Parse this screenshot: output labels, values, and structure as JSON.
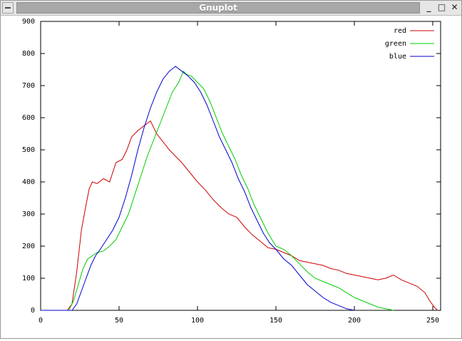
{
  "window": {
    "title": "Gnuplot",
    "controls": {
      "minimize": "_",
      "maximize": "□",
      "close": "✕"
    }
  },
  "chart_data": {
    "type": "line",
    "xlim": [
      0,
      255
    ],
    "ylim": [
      0,
      900
    ],
    "xticks": [
      0,
      50,
      100,
      150,
      200,
      250
    ],
    "yticks": [
      0,
      100,
      200,
      300,
      400,
      500,
      600,
      700,
      800,
      900
    ],
    "legend_position": "top-right",
    "grid": false,
    "series": [
      {
        "name": "red",
        "color": "#cc0000",
        "points": [
          [
            0,
            0
          ],
          [
            17,
            0
          ],
          [
            20,
            20
          ],
          [
            23,
            120
          ],
          [
            26,
            250
          ],
          [
            29,
            330
          ],
          [
            31,
            380
          ],
          [
            33,
            400
          ],
          [
            36,
            395
          ],
          [
            40,
            410
          ],
          [
            44,
            400
          ],
          [
            48,
            460
          ],
          [
            52,
            470
          ],
          [
            55,
            500
          ],
          [
            58,
            540
          ],
          [
            62,
            560
          ],
          [
            66,
            575
          ],
          [
            70,
            590
          ],
          [
            74,
            550
          ],
          [
            78,
            525
          ],
          [
            82,
            500
          ],
          [
            86,
            480
          ],
          [
            90,
            460
          ],
          [
            95,
            430
          ],
          [
            100,
            400
          ],
          [
            105,
            375
          ],
          [
            110,
            345
          ],
          [
            115,
            320
          ],
          [
            120,
            300
          ],
          [
            125,
            290
          ],
          [
            130,
            260
          ],
          [
            135,
            235
          ],
          [
            140,
            215
          ],
          [
            145,
            195
          ],
          [
            150,
            190
          ],
          [
            155,
            180
          ],
          [
            160,
            170
          ],
          [
            165,
            155
          ],
          [
            170,
            150
          ],
          [
            175,
            145
          ],
          [
            180,
            140
          ],
          [
            185,
            130
          ],
          [
            190,
            125
          ],
          [
            195,
            115
          ],
          [
            200,
            110
          ],
          [
            205,
            105
          ],
          [
            210,
            100
          ],
          [
            215,
            95
          ],
          [
            220,
            100
          ],
          [
            225,
            110
          ],
          [
            230,
            95
          ],
          [
            235,
            85
          ],
          [
            240,
            75
          ],
          [
            245,
            55
          ],
          [
            248,
            30
          ],
          [
            251,
            10
          ],
          [
            253,
            0
          ]
        ]
      },
      {
        "name": "green",
        "color": "#00cc00",
        "points": [
          [
            0,
            0
          ],
          [
            18,
            0
          ],
          [
            21,
            30
          ],
          [
            24,
            80
          ],
          [
            27,
            130
          ],
          [
            30,
            160
          ],
          [
            33,
            170
          ],
          [
            36,
            180
          ],
          [
            40,
            185
          ],
          [
            44,
            200
          ],
          [
            48,
            220
          ],
          [
            52,
            260
          ],
          [
            56,
            300
          ],
          [
            60,
            360
          ],
          [
            64,
            420
          ],
          [
            68,
            480
          ],
          [
            72,
            530
          ],
          [
            76,
            580
          ],
          [
            80,
            630
          ],
          [
            84,
            680
          ],
          [
            88,
            710
          ],
          [
            91,
            745
          ],
          [
            93,
            735
          ],
          [
            96,
            730
          ],
          [
            100,
            710
          ],
          [
            104,
            690
          ],
          [
            108,
            650
          ],
          [
            112,
            600
          ],
          [
            116,
            550
          ],
          [
            120,
            510
          ],
          [
            124,
            470
          ],
          [
            128,
            420
          ],
          [
            132,
            380
          ],
          [
            136,
            330
          ],
          [
            140,
            290
          ],
          [
            145,
            240
          ],
          [
            150,
            200
          ],
          [
            155,
            190
          ],
          [
            160,
            170
          ],
          [
            165,
            145
          ],
          [
            170,
            120
          ],
          [
            175,
            100
          ],
          [
            180,
            90
          ],
          [
            185,
            80
          ],
          [
            190,
            70
          ],
          [
            195,
            55
          ],
          [
            200,
            40
          ],
          [
            205,
            30
          ],
          [
            210,
            20
          ],
          [
            215,
            10
          ],
          [
            220,
            5
          ],
          [
            225,
            0
          ]
        ]
      },
      {
        "name": "blue",
        "color": "#0000cc",
        "points": [
          [
            0,
            0
          ],
          [
            20,
            0
          ],
          [
            23,
            20
          ],
          [
            26,
            60
          ],
          [
            29,
            100
          ],
          [
            32,
            140
          ],
          [
            35,
            170
          ],
          [
            38,
            190
          ],
          [
            42,
            220
          ],
          [
            46,
            250
          ],
          [
            50,
            290
          ],
          [
            54,
            350
          ],
          [
            58,
            420
          ],
          [
            62,
            500
          ],
          [
            66,
            570
          ],
          [
            70,
            630
          ],
          [
            74,
            680
          ],
          [
            78,
            720
          ],
          [
            82,
            745
          ],
          [
            86,
            760
          ],
          [
            90,
            745
          ],
          [
            94,
            730
          ],
          [
            98,
            710
          ],
          [
            102,
            680
          ],
          [
            106,
            640
          ],
          [
            110,
            590
          ],
          [
            114,
            540
          ],
          [
            118,
            500
          ],
          [
            122,
            460
          ],
          [
            126,
            410
          ],
          [
            130,
            370
          ],
          [
            134,
            320
          ],
          [
            138,
            280
          ],
          [
            142,
            240
          ],
          [
            146,
            210
          ],
          [
            150,
            190
          ],
          [
            155,
            160
          ],
          [
            160,
            140
          ],
          [
            165,
            110
          ],
          [
            170,
            80
          ],
          [
            175,
            60
          ],
          [
            180,
            40
          ],
          [
            185,
            25
          ],
          [
            190,
            15
          ],
          [
            195,
            5
          ],
          [
            200,
            0
          ]
        ]
      }
    ]
  }
}
